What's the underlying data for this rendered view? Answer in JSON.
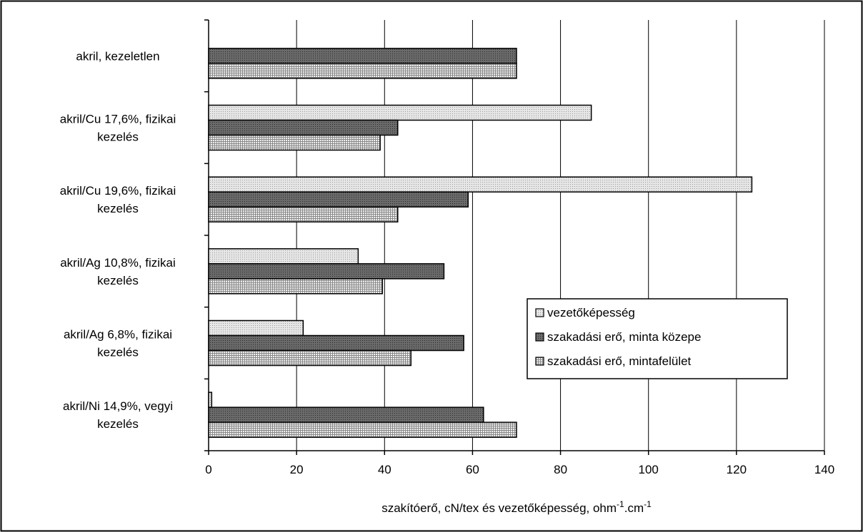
{
  "chart_data": {
    "type": "bar",
    "orientation": "horizontal",
    "categories": [
      [
        "akril, kezeletlen"
      ],
      [
        "akril/Cu 17,6%, fizikai",
        "kezelés"
      ],
      [
        "akril/Cu 19,6%, fizikai",
        "kezelés"
      ],
      [
        "akril/Ag 10,8%, fizikai",
        "kezelés"
      ],
      [
        "akril/Ag 6,8%, fizikai",
        "kezelés"
      ],
      [
        "akril/Ni 14,9%, vegyi",
        "kezelés"
      ]
    ],
    "series": [
      {
        "name": "vezetőképesség",
        "color": "#d0d0d0",
        "pattern": "light-dots",
        "values": [
          null,
          87,
          123.5,
          34,
          21.5,
          0.7
        ]
      },
      {
        "name": "szakadási erő, minta közepe",
        "color": "#707070",
        "pattern": "dark-dots",
        "values": [
          70,
          43,
          59,
          53.5,
          58,
          62.5
        ]
      },
      {
        "name": "szakadási erő, mintafelület",
        "color": "#bdbdbd",
        "pattern": "crosshatch",
        "values": [
          70,
          39,
          43,
          39.5,
          46,
          70
        ]
      }
    ],
    "xlim": [
      0,
      140
    ],
    "xticks": [
      0,
      20,
      40,
      60,
      80,
      100,
      120,
      140
    ],
    "xlabel_parts": [
      "szakítóerő, cN/tex és vezetőképesség, ohm",
      "-1",
      ".cm",
      "-1"
    ],
    "grid": "vertical",
    "legend_position": "lower-right"
  }
}
